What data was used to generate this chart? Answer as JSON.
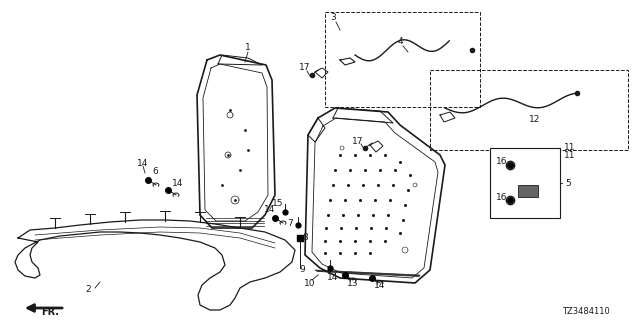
{
  "bg_color": "#ffffff",
  "line_color": "#1a1a1a",
  "diagram_number": "TZ3484110",
  "fr_label": "FR."
}
